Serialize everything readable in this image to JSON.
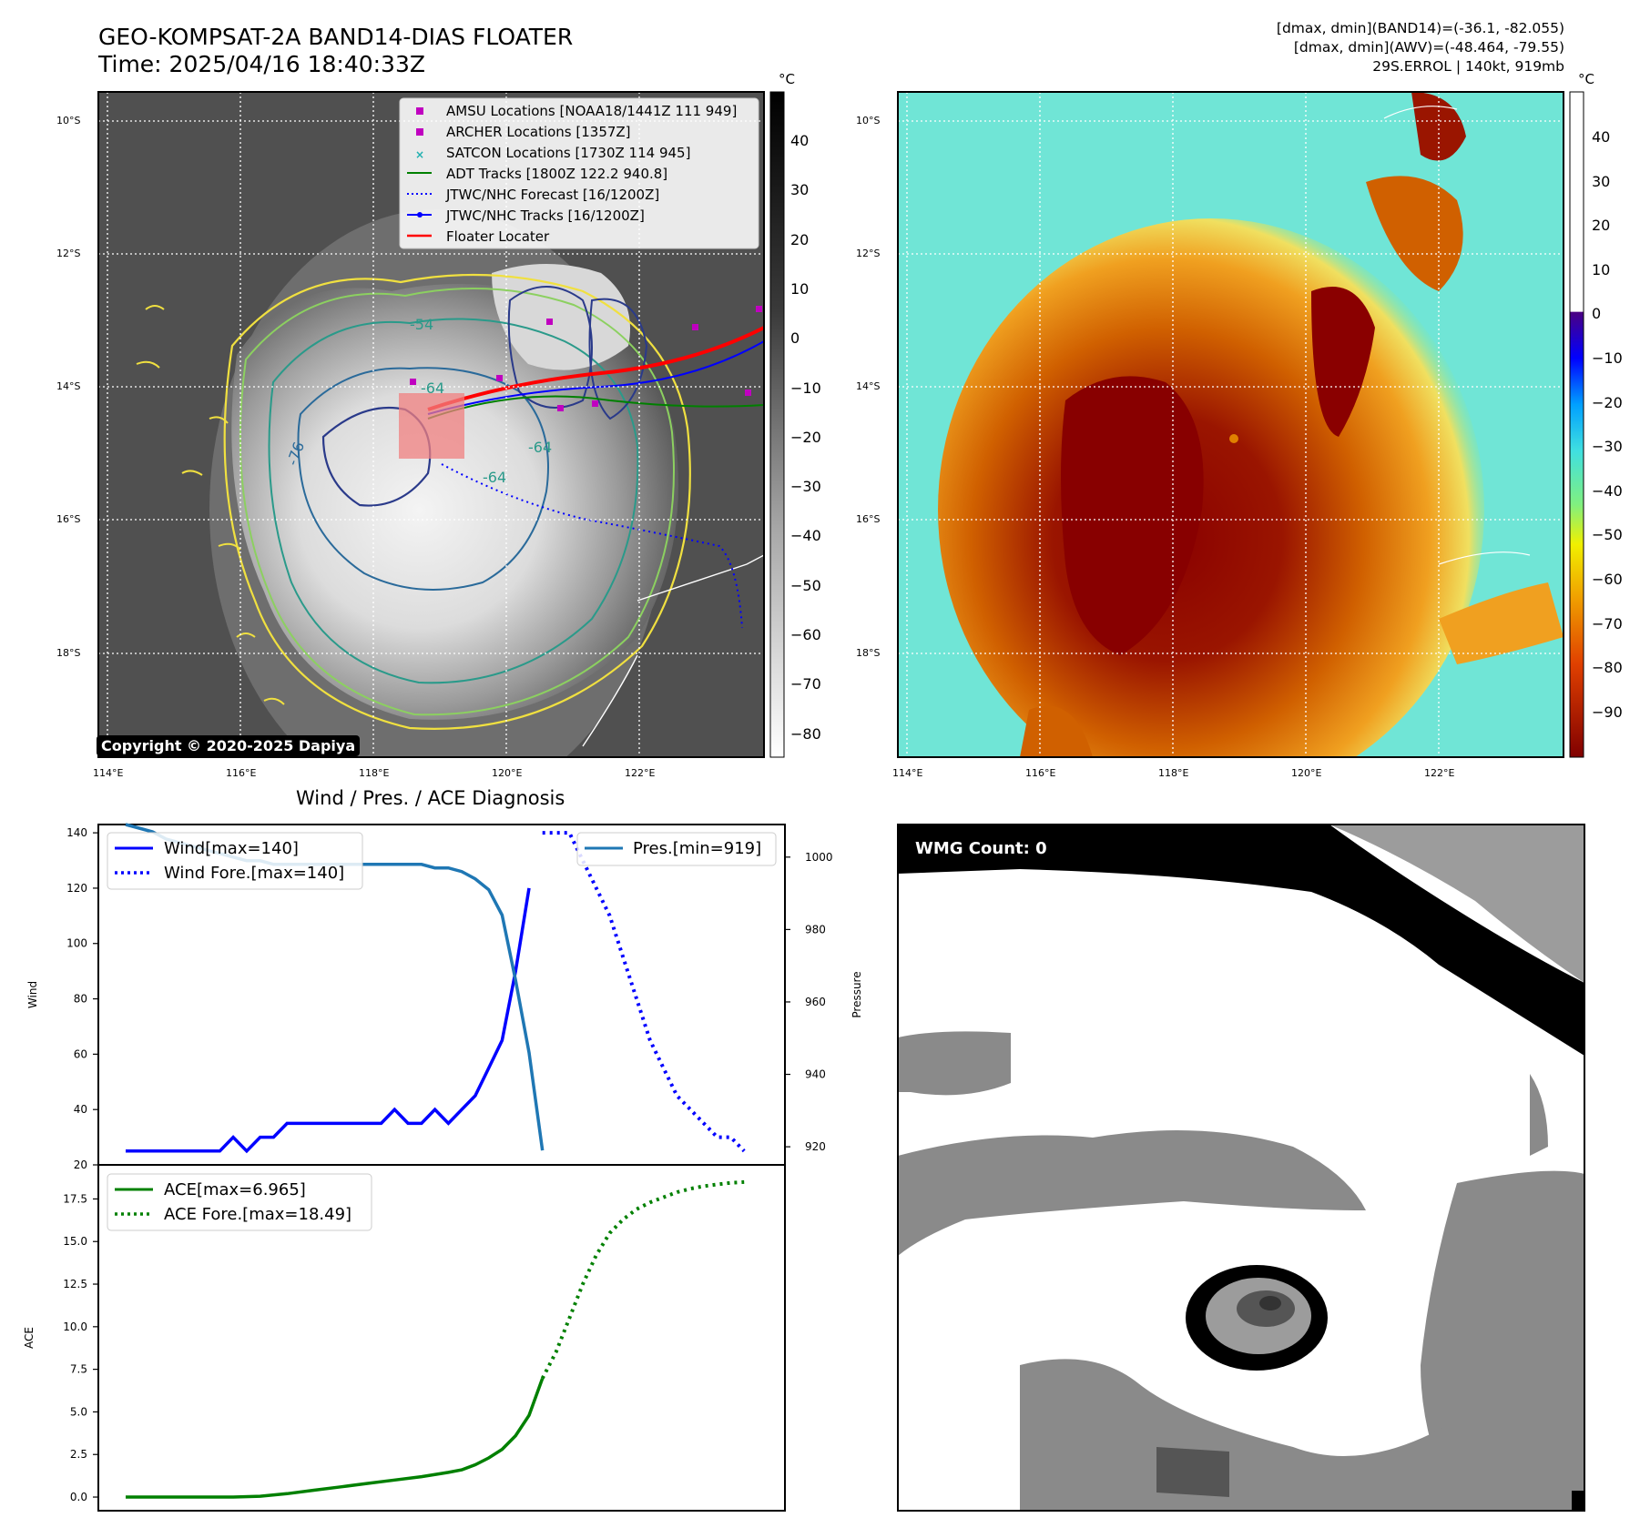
{
  "header": {
    "title_line1": "GEO-KOMPSAT-2A BAND14-DIAS FLOATER",
    "title_line2": "Time: 2025/04/16 18:40:33Z",
    "info_line1": "[dmax, dmin](BAND14)=(-36.1, -82.055)",
    "info_line2": "[dmax, dmin](AWV)=(-48.464, -79.55)",
    "info_line3": "29S.ERROL | 140kt, 919mb"
  },
  "map_axes": {
    "lat_labels": [
      "10°S",
      "12°S",
      "14°S",
      "16°S",
      "18°S"
    ],
    "lon_labels": [
      "114°E",
      "116°E",
      "118°E",
      "120°E",
      "122°E"
    ],
    "unit": "°C"
  },
  "ir_panel": {
    "copyright": "Copyright © 2020-2025 Dapiya",
    "colorbar_ticks": [
      "40",
      "30",
      "20",
      "10",
      "0",
      "−10",
      "−20",
      "−30",
      "−40",
      "−50",
      "−60",
      "−70",
      "−80"
    ],
    "contour_labels": [
      "-54",
      "-64",
      "-76",
      "-64",
      "-64"
    ],
    "legend": [
      {
        "label": "AMSU Locations [NOAA18/1441Z 111 949]",
        "color": "#c000c0",
        "marker": "square"
      },
      {
        "label": "ARCHER Locations [1357Z]",
        "color": "#c000c0",
        "marker": "square"
      },
      {
        "label": "SATCON Locations [1730Z 114 945]",
        "color": "#20b0b0",
        "marker": "x"
      },
      {
        "label": "ADT Tracks [1800Z 122.2 940.8]",
        "color": "#008000",
        "marker": "line"
      },
      {
        "label": "JTWC/NHC Forecast [16/1200Z]",
        "color": "#0000ff",
        "marker": "dotted"
      },
      {
        "label": "JTWC/NHC Tracks [16/1200Z]",
        "color": "#0000ff",
        "marker": "line-dot"
      },
      {
        "label": "Floater Locater",
        "color": "#ff0000",
        "marker": "line"
      }
    ]
  },
  "awv_panel": {
    "colorbar_ticks": [
      "40",
      "30",
      "20",
      "10",
      "0",
      "−10",
      "−20",
      "−30",
      "−40",
      "−50",
      "−60",
      "−70",
      "−80",
      "−90"
    ]
  },
  "diagnosis": {
    "title": "Wind / Pres. / ACE Diagnosis",
    "wind_ylabel": "Wind",
    "pres_ylabel": "Pressure",
    "ace_ylabel": "ACE",
    "wind_ticks": [
      "20",
      "40",
      "60",
      "80",
      "100",
      "120",
      "140"
    ],
    "pres_ticks": [
      "920",
      "940",
      "960",
      "980",
      "1000"
    ],
    "ace_ticks": [
      "0.0",
      "2.5",
      "5.0",
      "7.5",
      "10.0",
      "12.5",
      "15.0",
      "17.5"
    ],
    "legend_wind": "Wind[max=140]",
    "legend_wind_fore": "Wind Fore.[max=140]",
    "legend_pres": "Pres.[min=919]",
    "legend_ace": "ACE[max=6.965]",
    "legend_ace_fore": "ACE Fore.[max=18.49]"
  },
  "wmg_panel": {
    "count_label": "WMG Count: 0"
  },
  "chart_data": [
    {
      "type": "line",
      "title": "Wind / Pres. / ACE Diagnosis",
      "ylabel": "Wind",
      "ylim": [
        20,
        143
      ],
      "xlim": [
        0,
        47
      ],
      "series": [
        {
          "name": "Wind[max=140]",
          "color": "#0000ff",
          "style": "solid",
          "x": [
            0,
            1,
            2,
            3,
            4,
            5,
            6,
            7,
            8,
            9,
            10,
            11,
            12,
            13,
            14,
            15,
            16,
            17,
            18,
            19,
            20,
            21,
            22,
            23,
            24,
            25,
            26,
            27,
            28,
            29,
            30
          ],
          "values": [
            25,
            25,
            25,
            25,
            25,
            25,
            25,
            25,
            30,
            25,
            30,
            30,
            35,
            35,
            35,
            35,
            35,
            35,
            35,
            35,
            40,
            35,
            35,
            40,
            35,
            40,
            45,
            55,
            65,
            90,
            120
          ]
        },
        {
          "name": "Wind Fore.[max=140]",
          "color": "#0000ff",
          "style": "dotted",
          "x": [
            31,
            32,
            33,
            34,
            35,
            36,
            37,
            38,
            39,
            40,
            41,
            42,
            43,
            44,
            45,
            46
          ],
          "values": [
            140,
            140,
            140,
            130,
            120,
            110,
            95,
            80,
            65,
            55,
            45,
            40,
            35,
            30,
            30,
            25
          ]
        }
      ]
    },
    {
      "type": "line",
      "ylabel": "Pressure",
      "ylim": [
        915,
        1009
      ],
      "series": [
        {
          "name": "Pres.[min=919]",
          "color": "#1f77b4",
          "style": "solid",
          "x": [
            0,
            1,
            2,
            3,
            4,
            5,
            6,
            7,
            8,
            9,
            10,
            11,
            12,
            13,
            14,
            15,
            16,
            17,
            18,
            19,
            20,
            21,
            22,
            23,
            24,
            25,
            26,
            27,
            28,
            29,
            30,
            31
          ],
          "values": [
            1009,
            1008,
            1007,
            1005,
            1004,
            1003,
            1002,
            1001,
            1000,
            999,
            999,
            998,
            998,
            998,
            998,
            998,
            998,
            998,
            998,
            998,
            998,
            998,
            998,
            997,
            997,
            996,
            994,
            991,
            984,
            966,
            946,
            919
          ]
        }
      ]
    },
    {
      "type": "line",
      "ylabel": "ACE",
      "ylim": [
        -0.8,
        19.5
      ],
      "xlim": [
        0,
        47
      ],
      "series": [
        {
          "name": "ACE[max=6.965]",
          "color": "#008000",
          "style": "solid",
          "x": [
            0,
            2,
            4,
            6,
            8,
            10,
            12,
            14,
            16,
            18,
            20,
            22,
            24,
            25,
            26,
            27,
            28,
            29,
            30,
            31
          ],
          "values": [
            0,
            0,
            0,
            0,
            0,
            0.05,
            0.2,
            0.4,
            0.6,
            0.8,
            1.0,
            1.2,
            1.45,
            1.6,
            1.9,
            2.3,
            2.8,
            3.6,
            4.8,
            6.965
          ]
        },
        {
          "name": "ACE Fore.[max=18.49]",
          "color": "#008000",
          "style": "dotted",
          "x": [
            31,
            32,
            33,
            34,
            35,
            36,
            37,
            38,
            39,
            40,
            41,
            42,
            43,
            44,
            45,
            46
          ],
          "values": [
            6.965,
            8.5,
            10.5,
            12.5,
            14.2,
            15.5,
            16.3,
            16.9,
            17.3,
            17.6,
            17.9,
            18.1,
            18.25,
            18.35,
            18.45,
            18.49
          ]
        }
      ]
    }
  ]
}
